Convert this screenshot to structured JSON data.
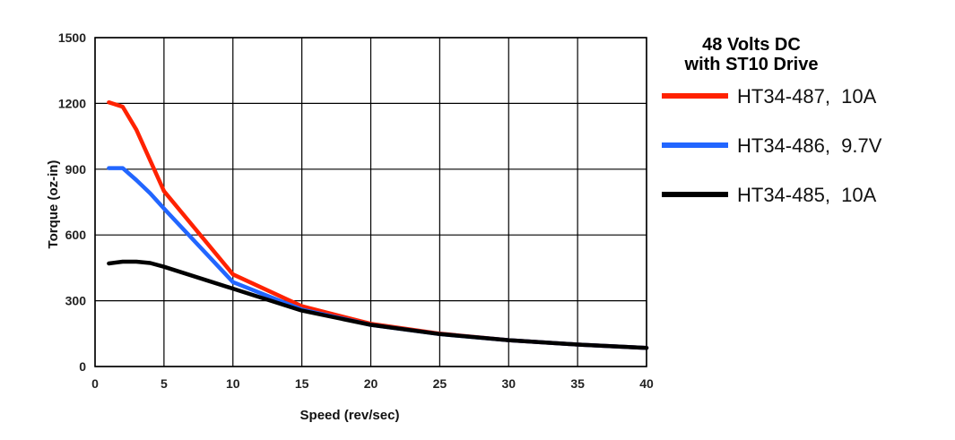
{
  "chart_data": {
    "type": "line",
    "title_lines": [
      "48 Volts DC",
      "with ST10 Drive"
    ],
    "xlabel": "Speed (rev/sec)",
    "ylabel": "Torque (oz-in)",
    "xlim": [
      0,
      40
    ],
    "ylim": [
      0,
      1500
    ],
    "xticks": [
      0,
      5,
      10,
      15,
      20,
      25,
      30,
      35,
      40
    ],
    "yticks": [
      0,
      300,
      600,
      900,
      1200,
      1500
    ],
    "grid": true,
    "legend_position": "right",
    "series": [
      {
        "name": "HT34-487,  10A",
        "color": "#ff2200",
        "x": [
          1,
          2,
          3,
          5,
          10,
          15,
          20,
          25,
          30,
          35,
          40
        ],
        "y": [
          1205,
          1185,
          1080,
          800,
          420,
          275,
          195,
          150,
          120,
          100,
          85
        ]
      },
      {
        "name": "HT34-486,  9.7V",
        "color": "#2266ff",
        "x": [
          1,
          2,
          3,
          4,
          5,
          10,
          15,
          20,
          25,
          30,
          35,
          40
        ],
        "y": [
          905,
          905,
          850,
          790,
          720,
          385,
          260,
          190,
          148,
          120,
          100,
          85
        ]
      },
      {
        "name": "HT34-485,  10A",
        "color": "#000000",
        "x": [
          1,
          2,
          3,
          4,
          5,
          10,
          15,
          20,
          25,
          30,
          35,
          40
        ],
        "y": [
          470,
          478,
          478,
          472,
          455,
          355,
          255,
          190,
          148,
          120,
          100,
          85
        ]
      }
    ]
  }
}
